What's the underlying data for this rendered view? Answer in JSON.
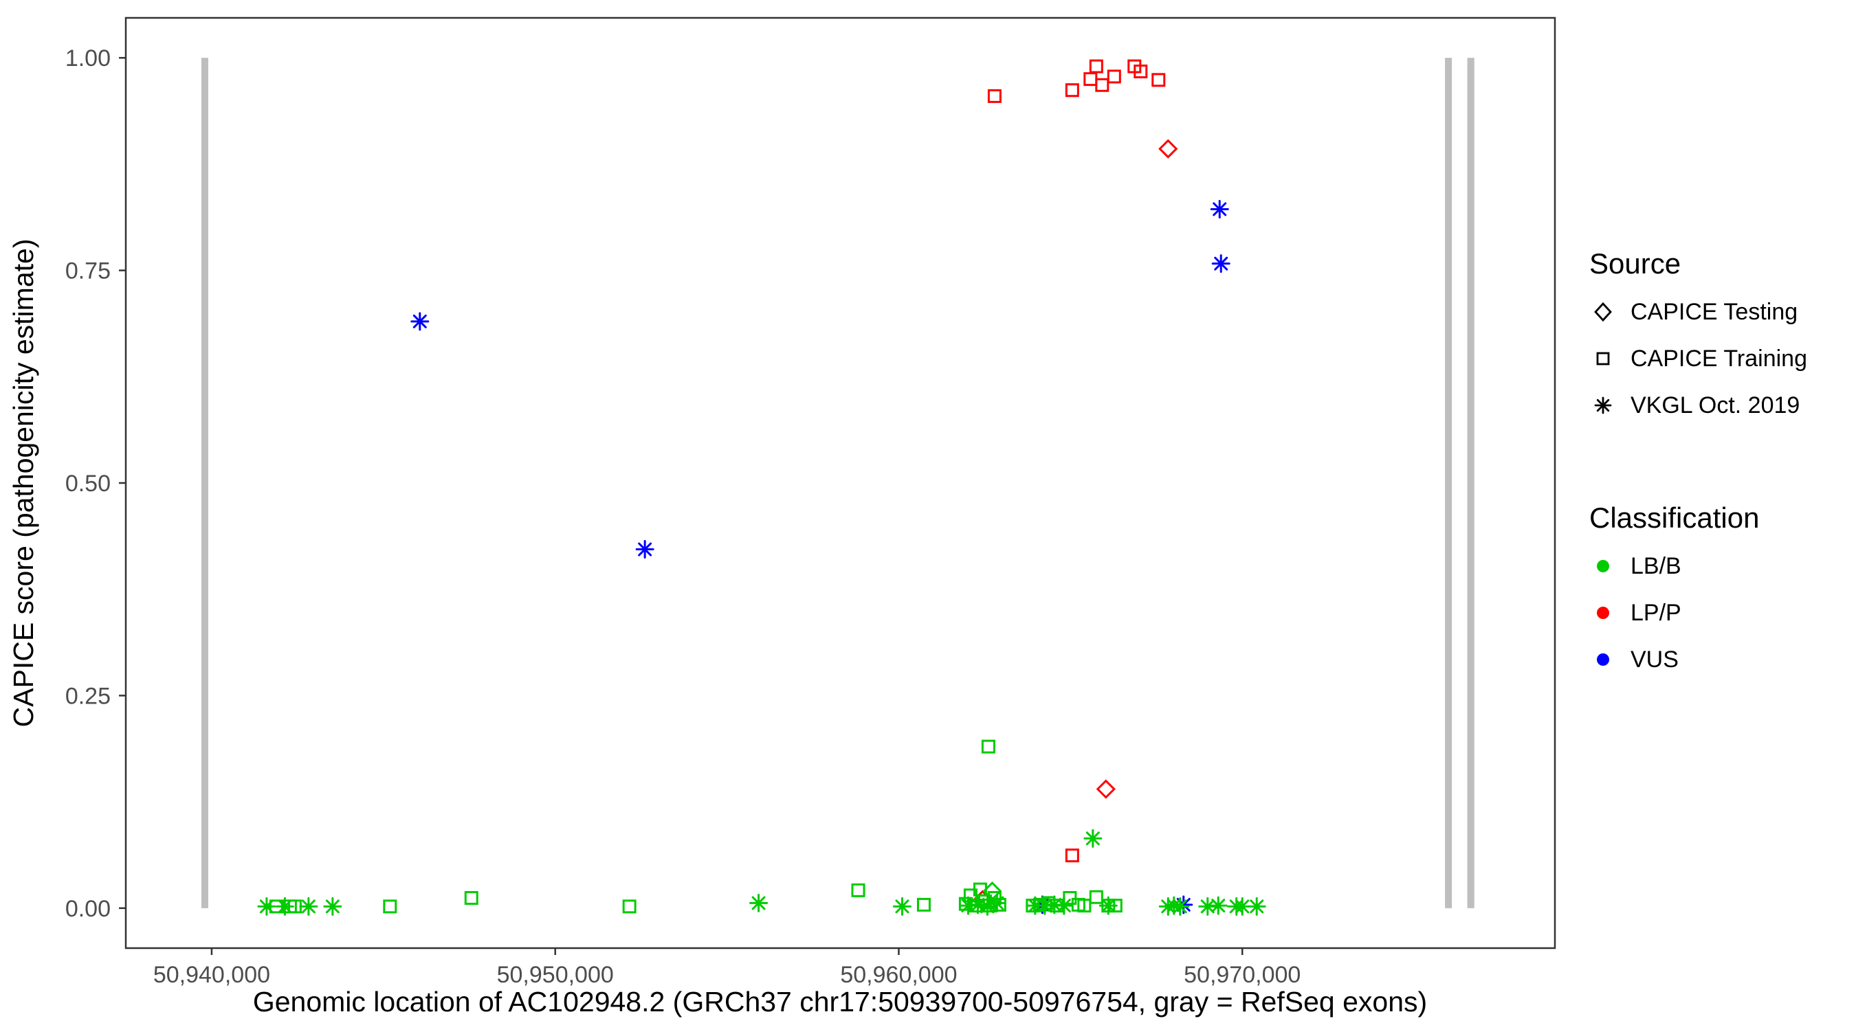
{
  "legend": {
    "source_title": "Source",
    "source_items": [
      {
        "label": "CAPICE Testing",
        "shape": "diamond"
      },
      {
        "label": "CAPICE Training",
        "shape": "square"
      },
      {
        "label": "VKGL Oct. 2019",
        "shape": "asterisk"
      }
    ],
    "class_title": "Classification",
    "class_items": [
      {
        "label": "LB/B",
        "color": "#00CC00"
      },
      {
        "label": "LP/P",
        "color": "#FF0000"
      },
      {
        "label": "VUS",
        "color": "#0000FF"
      }
    ]
  },
  "chart_data": {
    "type": "scatter",
    "title": "",
    "xlabel": "Genomic location of AC102948.2 (GRCh37 chr17:50939700-50976754, gray = RefSeq exons)",
    "ylabel": "CAPICE score (pathogenicity estimate)",
    "xlim": [
      50937500,
      50979100
    ],
    "ylim": [
      -0.047,
      1.047
    ],
    "grid": false,
    "legend_position": "right",
    "x_ticks": [
      {
        "value": 50940000,
        "label": "50,940,000"
      },
      {
        "value": 50950000,
        "label": "50,950,000"
      },
      {
        "value": 50960000,
        "label": "50,960,000"
      },
      {
        "value": 50970000,
        "label": "50,970,000"
      }
    ],
    "y_ticks": [
      {
        "value": 0.0,
        "label": "0.00"
      },
      {
        "value": 0.25,
        "label": "0.25"
      },
      {
        "value": 0.5,
        "label": "0.50"
      },
      {
        "value": 0.75,
        "label": "0.75"
      },
      {
        "value": 1.0,
        "label": "1.00"
      }
    ],
    "exon_color": "#BEBEBE",
    "refseq_exons": [
      [
        50939700,
        50939900
      ],
      [
        50975900,
        50976100
      ],
      [
        50976550,
        50976754
      ]
    ],
    "series": [
      {
        "name": "CAPICE Training LP/P",
        "source": "CAPICE Training",
        "classification": "LP/P",
        "shape": "square",
        "color": "#FF0000",
        "points": [
          [
            50962790,
            0.955
          ],
          [
            50965050,
            0.962
          ],
          [
            50965580,
            0.975
          ],
          [
            50965750,
            0.99
          ],
          [
            50965920,
            0.968
          ],
          [
            50966270,
            0.978
          ],
          [
            50966860,
            0.99
          ],
          [
            50967040,
            0.984
          ],
          [
            50967560,
            0.974
          ],
          [
            50965050,
            0.062
          ]
        ]
      },
      {
        "name": "CAPICE Testing LP/P",
        "source": "CAPICE Testing",
        "classification": "LP/P",
        "shape": "diamond",
        "color": "#FF0000",
        "points": [
          [
            50967840,
            0.893
          ],
          [
            50966030,
            0.14
          ],
          [
            50962440,
            0.01
          ]
        ]
      },
      {
        "name": "VKGL Oct. 2019 VUS",
        "source": "VKGL Oct. 2019",
        "classification": "VUS",
        "shape": "asterisk",
        "color": "#0000FF",
        "points": [
          [
            50946060,
            0.69
          ],
          [
            50952610,
            0.422
          ],
          [
            50969340,
            0.822
          ],
          [
            50969380,
            0.758
          ],
          [
            50968290,
            0.004
          ],
          [
            50964180,
            0.004
          ]
        ]
      },
      {
        "name": "CAPICE Testing LB/B",
        "source": "CAPICE Testing",
        "classification": "LB/B",
        "shape": "diamond",
        "color": "#00CC00",
        "points": [
          [
            50962720,
            0.02
          ]
        ]
      },
      {
        "name": "CAPICE Training LB/B",
        "source": "CAPICE Training",
        "classification": "LB/B",
        "shape": "square",
        "color": "#00CC00",
        "points": [
          [
            50941880,
            0.002
          ],
          [
            50942280,
            0.002
          ],
          [
            50942420,
            0.002
          ],
          [
            50945190,
            0.002
          ],
          [
            50947560,
            0.012
          ],
          [
            50952160,
            0.002
          ],
          [
            50958820,
            0.021
          ],
          [
            50960730,
            0.004
          ],
          [
            50961950,
            0.005
          ],
          [
            50962090,
            0.015
          ],
          [
            50962230,
            0.003
          ],
          [
            50962370,
            0.022
          ],
          [
            50962510,
            0.008
          ],
          [
            50962650,
            0.003
          ],
          [
            50962790,
            0.012
          ],
          [
            50962930,
            0.004
          ],
          [
            50962610,
            0.19
          ],
          [
            50963900,
            0.003
          ],
          [
            50964110,
            0.004
          ],
          [
            50964360,
            0.006
          ],
          [
            50964600,
            0.003
          ],
          [
            50964980,
            0.012
          ],
          [
            50965230,
            0.004
          ],
          [
            50965400,
            0.003
          ],
          [
            50965750,
            0.013
          ],
          [
            50966100,
            0.003
          ],
          [
            50966310,
            0.003
          ]
        ]
      },
      {
        "name": "VKGL Oct. 2019 LB/B",
        "source": "VKGL Oct. 2019",
        "classification": "LB/B",
        "shape": "asterisk",
        "color": "#00CC00",
        "points": [
          [
            50941600,
            0.002
          ],
          [
            50942130,
            0.002
          ],
          [
            50942820,
            0.002
          ],
          [
            50943520,
            0.002
          ],
          [
            50955920,
            0.006
          ],
          [
            50960100,
            0.002
          ],
          [
            50962020,
            0.003
          ],
          [
            50962300,
            0.004
          ],
          [
            50962580,
            0.002
          ],
          [
            50962860,
            0.006
          ],
          [
            50963970,
            0.003
          ],
          [
            50964250,
            0.003
          ],
          [
            50964530,
            0.004
          ],
          [
            50964810,
            0.003
          ],
          [
            50966100,
            0.003
          ],
          [
            50965650,
            0.082
          ],
          [
            50967840,
            0.002
          ],
          [
            50968010,
            0.003
          ],
          [
            50968190,
            0.002
          ],
          [
            50968990,
            0.002
          ],
          [
            50969300,
            0.003
          ],
          [
            50969830,
            0.002
          ],
          [
            50970000,
            0.002
          ],
          [
            50970420,
            0.002
          ]
        ]
      }
    ]
  }
}
